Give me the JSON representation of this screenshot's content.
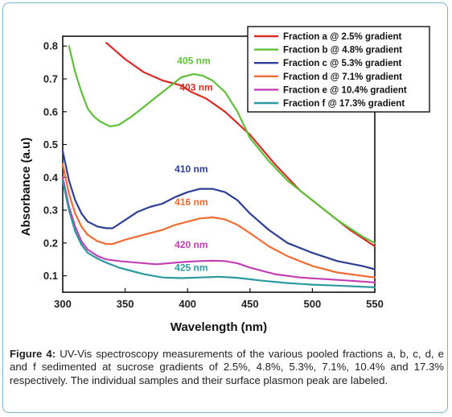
{
  "chart_data": {
    "type": "line",
    "xlabel": "Wavelength (nm)",
    "ylabel": "Absorbance (a.u)",
    "xlim": [
      300,
      550
    ],
    "ylim": [
      0.05,
      0.83
    ],
    "x_ticks": [
      300,
      350,
      400,
      450,
      500,
      550
    ],
    "y_ticks": [
      0.1,
      0.2,
      0.3,
      0.4,
      0.5,
      0.6,
      0.7,
      0.8
    ],
    "grid": false,
    "legend_position": "top-right",
    "series": [
      {
        "name": "Fraction a @ 2.5% gradient",
        "color": "#d92b25",
        "points": [
          [
            335,
            0.81
          ],
          [
            350,
            0.76
          ],
          [
            365,
            0.72
          ],
          [
            380,
            0.695
          ],
          [
            395,
            0.68
          ],
          [
            403,
            0.66
          ],
          [
            415,
            0.64
          ],
          [
            430,
            0.6
          ],
          [
            450,
            0.53
          ],
          [
            470,
            0.44
          ],
          [
            490,
            0.36
          ],
          [
            510,
            0.3
          ],
          [
            530,
            0.24
          ],
          [
            550,
            0.19
          ]
        ]
      },
      {
        "name": "Fraction b @ 4.8% gradient",
        "color": "#5fbf3b",
        "points": [
          [
            305,
            0.8
          ],
          [
            310,
            0.72
          ],
          [
            315,
            0.66
          ],
          [
            320,
            0.61
          ],
          [
            325,
            0.585
          ],
          [
            330,
            0.57
          ],
          [
            338,
            0.555
          ],
          [
            345,
            0.56
          ],
          [
            355,
            0.585
          ],
          [
            365,
            0.615
          ],
          [
            375,
            0.645
          ],
          [
            385,
            0.675
          ],
          [
            395,
            0.705
          ],
          [
            405,
            0.715
          ],
          [
            412,
            0.71
          ],
          [
            420,
            0.695
          ],
          [
            430,
            0.66
          ],
          [
            440,
            0.6
          ],
          [
            450,
            0.52
          ],
          [
            465,
            0.45
          ],
          [
            480,
            0.39
          ],
          [
            500,
            0.33
          ],
          [
            520,
            0.27
          ],
          [
            540,
            0.22
          ],
          [
            550,
            0.2
          ]
        ]
      },
      {
        "name": "Fraction c @ 5.3% gradient",
        "color": "#2f3e95",
        "points": [
          [
            300,
            0.48
          ],
          [
            305,
            0.39
          ],
          [
            310,
            0.33
          ],
          [
            315,
            0.29
          ],
          [
            320,
            0.265
          ],
          [
            328,
            0.25
          ],
          [
            335,
            0.245
          ],
          [
            340,
            0.245
          ],
          [
            350,
            0.27
          ],
          [
            360,
            0.295
          ],
          [
            370,
            0.31
          ],
          [
            380,
            0.32
          ],
          [
            390,
            0.34
          ],
          [
            400,
            0.355
          ],
          [
            410,
            0.365
          ],
          [
            420,
            0.365
          ],
          [
            430,
            0.355
          ],
          [
            440,
            0.33
          ],
          [
            450,
            0.29
          ],
          [
            465,
            0.24
          ],
          [
            480,
            0.2
          ],
          [
            500,
            0.17
          ],
          [
            520,
            0.145
          ],
          [
            540,
            0.13
          ],
          [
            550,
            0.12
          ]
        ]
      },
      {
        "name": "Fraction d @ 7.1% gradient",
        "color": "#ef6c34",
        "points": [
          [
            300,
            0.44
          ],
          [
            305,
            0.35
          ],
          [
            310,
            0.29
          ],
          [
            315,
            0.25
          ],
          [
            320,
            0.225
          ],
          [
            328,
            0.205
          ],
          [
            335,
            0.197
          ],
          [
            340,
            0.197
          ],
          [
            350,
            0.21
          ],
          [
            360,
            0.22
          ],
          [
            370,
            0.23
          ],
          [
            380,
            0.24
          ],
          [
            390,
            0.255
          ],
          [
            400,
            0.265
          ],
          [
            410,
            0.275
          ],
          [
            420,
            0.278
          ],
          [
            430,
            0.272
          ],
          [
            440,
            0.255
          ],
          [
            450,
            0.23
          ],
          [
            465,
            0.19
          ],
          [
            480,
            0.16
          ],
          [
            500,
            0.13
          ],
          [
            520,
            0.11
          ],
          [
            540,
            0.1
          ],
          [
            550,
            0.095
          ]
        ]
      },
      {
        "name": "Fraction e @ 10.4% gradient",
        "color": "#c33fb4",
        "points": [
          [
            300,
            0.4
          ],
          [
            305,
            0.31
          ],
          [
            310,
            0.25
          ],
          [
            315,
            0.205
          ],
          [
            320,
            0.18
          ],
          [
            328,
            0.16
          ],
          [
            335,
            0.15
          ],
          [
            345,
            0.145
          ],
          [
            360,
            0.14
          ],
          [
            375,
            0.135
          ],
          [
            390,
            0.14
          ],
          [
            400,
            0.143
          ],
          [
            410,
            0.145
          ],
          [
            420,
            0.146
          ],
          [
            430,
            0.145
          ],
          [
            440,
            0.138
          ],
          [
            450,
            0.125
          ],
          [
            470,
            0.105
          ],
          [
            490,
            0.095
          ],
          [
            510,
            0.09
          ],
          [
            530,
            0.085
          ],
          [
            550,
            0.08
          ]
        ]
      },
      {
        "name": "Fraction f @ 17.3% gradient",
        "color": "#2a9aa0",
        "points": [
          [
            300,
            0.39
          ],
          [
            305,
            0.3
          ],
          [
            310,
            0.235
          ],
          [
            315,
            0.195
          ],
          [
            320,
            0.17
          ],
          [
            328,
            0.152
          ],
          [
            335,
            0.14
          ],
          [
            345,
            0.125
          ],
          [
            355,
            0.115
          ],
          [
            365,
            0.105
          ],
          [
            380,
            0.095
          ],
          [
            395,
            0.093
          ],
          [
            410,
            0.095
          ],
          [
            425,
            0.097
          ],
          [
            440,
            0.094
          ],
          [
            460,
            0.085
          ],
          [
            480,
            0.078
          ],
          [
            500,
            0.073
          ],
          [
            520,
            0.07
          ],
          [
            550,
            0.065
          ]
        ]
      }
    ],
    "annotations": [
      {
        "text": "405 nm",
        "x": 405,
        "y": 0.745,
        "color": "#5fbf3b"
      },
      {
        "text": "403 nm",
        "x": 407,
        "y": 0.665,
        "color": "#d92b25"
      },
      {
        "text": "410 nm",
        "x": 403,
        "y": 0.415,
        "color": "#2f3e95"
      },
      {
        "text": "416 nm",
        "x": 403,
        "y": 0.315,
        "color": "#ef6c34"
      },
      {
        "text": "420 nm",
        "x": 403,
        "y": 0.185,
        "color": "#c33fb4"
      },
      {
        "text": "425 nm",
        "x": 403,
        "y": 0.115,
        "color": "#2a9aa0"
      }
    ]
  },
  "caption": {
    "label": "Figure 4:",
    "text": " UV-Vis spectroscopy measurements of the various pooled fractions a, b, c, d, e and f sedimented at sucrose gradients of 2.5%, 4.8%, 5.3%, 7.1%, 10.4% and 17.3% respectively. The individual samples and their surface plasmon peak are labeled."
  }
}
